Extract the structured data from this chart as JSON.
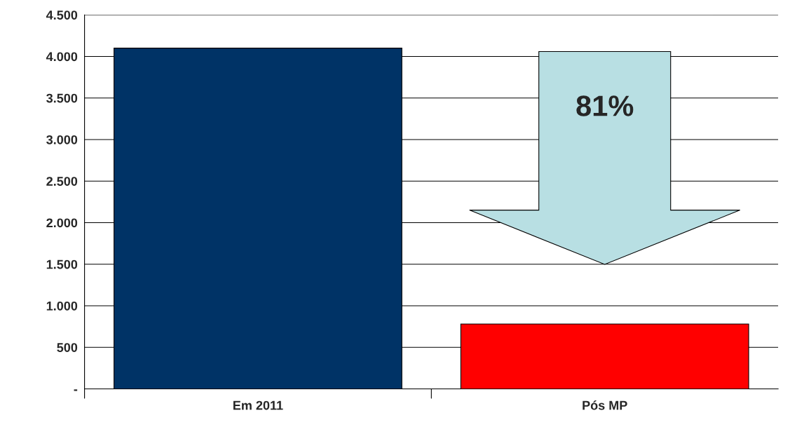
{
  "chart_data": {
    "type": "bar",
    "categories": [
      "Em 2011",
      "Pós MP"
    ],
    "values": [
      4100,
      780
    ],
    "colors": [
      "#003366",
      "#ff0000"
    ],
    "ylim": [
      0,
      4500
    ],
    "yticks": [
      {
        "value": 0,
        "label": "-"
      },
      {
        "value": 500,
        "label": "500"
      },
      {
        "value": 1000,
        "label": "1.000"
      },
      {
        "value": 1500,
        "label": "1.500"
      },
      {
        "value": 2000,
        "label": "2.000"
      },
      {
        "value": 2500,
        "label": "2.500"
      },
      {
        "value": 3000,
        "label": "3.000"
      },
      {
        "value": 3500,
        "label": "3.500"
      },
      {
        "value": 4000,
        "label": "4.000"
      },
      {
        "value": 4500,
        "label": "4.500"
      }
    ],
    "grid": "y",
    "annotations": [
      "81%"
    ]
  }
}
